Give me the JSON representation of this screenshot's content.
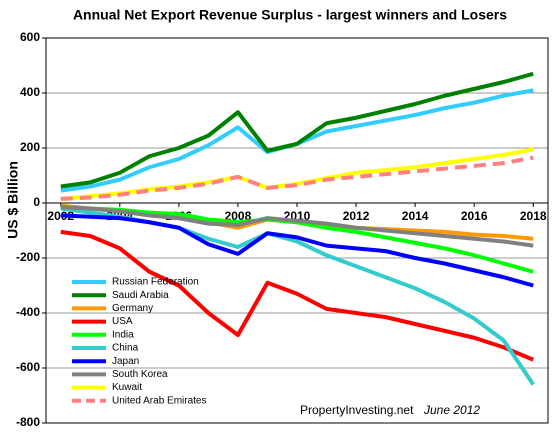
{
  "chart_data": {
    "type": "line",
    "title": "Annual Net Export Revenue Surplus -  largest winners and Losers",
    "y_label": "US $ Billion",
    "source": "PropertyInvesting.net",
    "date_note": "June 2012",
    "x": [
      2002,
      2003,
      2004,
      2005,
      2006,
      2007,
      2008,
      2009,
      2010,
      2011,
      2012,
      2013,
      2014,
      2015,
      2016,
      2017,
      2018
    ],
    "xlim": [
      2001.5,
      2018.5
    ],
    "xticks": [
      2002,
      2004,
      2006,
      2008,
      2010,
      2012,
      2014,
      2016,
      2018
    ],
    "ylim": [
      -800,
      600
    ],
    "yticks": [
      -800,
      -600,
      -400,
      -200,
      0,
      200,
      400,
      600
    ],
    "grid": true,
    "legend": "lower-left",
    "series": [
      {
        "name": "Russian Federation",
        "color": "#33ccff",
        "values": [
          45,
          60,
          85,
          130,
          160,
          210,
          275,
          185,
          215,
          260,
          280,
          300,
          320,
          345,
          365,
          390,
          410
        ]
      },
      {
        "name": "Saudi Arabia",
        "color": "#008000",
        "values": [
          60,
          75,
          110,
          170,
          200,
          245,
          330,
          190,
          215,
          290,
          310,
          335,
          360,
          390,
          415,
          440,
          470
        ]
      },
      {
        "name": "Germany",
        "color": "#ff9900",
        "values": [
          -10,
          -20,
          -30,
          -45,
          -55,
          -70,
          -90,
          -60,
          -70,
          -80,
          -90,
          -95,
          -100,
          -105,
          -115,
          -120,
          -130
        ]
      },
      {
        "name": "USA",
        "color": "#ff0000",
        "values": [
          -105,
          -120,
          -165,
          -250,
          -300,
          -400,
          -480,
          -290,
          -330,
          -385,
          -400,
          -415,
          -440,
          -465,
          -490,
          -525,
          -570
        ]
      },
      {
        "name": "India",
        "color": "#00ff00",
        "values": [
          -15,
          -20,
          -25,
          -35,
          -40,
          -60,
          -70,
          -60,
          -70,
          -90,
          -105,
          -125,
          -145,
          -165,
          -190,
          -220,
          -250
        ]
      },
      {
        "name": "China",
        "color": "#33cccc",
        "values": [
          -20,
          -35,
          -50,
          -70,
          -90,
          -130,
          -160,
          -110,
          -140,
          -190,
          -230,
          -270,
          -310,
          -360,
          -420,
          -500,
          -660
        ]
      },
      {
        "name": "Japan",
        "color": "#0000ff",
        "values": [
          -45,
          -50,
          -55,
          -70,
          -90,
          -150,
          -185,
          -110,
          -125,
          -155,
          -165,
          -175,
          -200,
          -220,
          -245,
          -270,
          -300
        ]
      },
      {
        "name": "South Korea",
        "color": "#808080",
        "values": [
          -15,
          -20,
          -30,
          -45,
          -55,
          -75,
          -80,
          -55,
          -65,
          -75,
          -90,
          -100,
          -110,
          -120,
          -130,
          -140,
          -155
        ]
      },
      {
        "name": "Kuwait",
        "color": "#ffff00",
        "values": [
          15,
          25,
          35,
          50,
          60,
          75,
          95,
          55,
          70,
          90,
          110,
          120,
          130,
          145,
          160,
          175,
          195
        ]
      },
      {
        "name": "United Arab Emirates",
        "color": "#ff8080",
        "dashed": true,
        "values": [
          15,
          20,
          30,
          45,
          55,
          70,
          95,
          55,
          65,
          85,
          95,
          105,
          115,
          125,
          135,
          145,
          165
        ]
      }
    ]
  }
}
